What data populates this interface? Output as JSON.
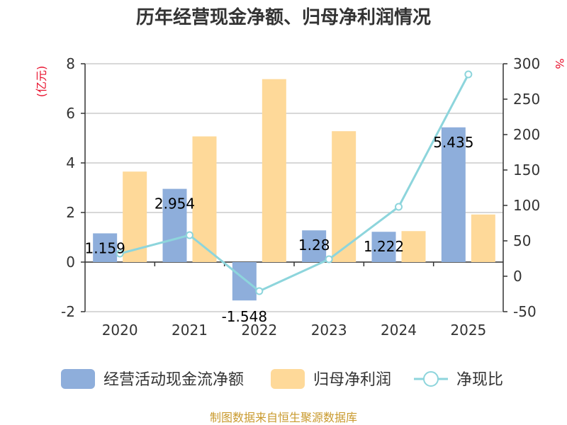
{
  "colors": {
    "cash_flow": "#8eaedb",
    "net_profit": "#fed999",
    "ratio_line": "#8dd5dc",
    "unit_label": "#e8112d",
    "source_text": "#c99a2e"
  },
  "chart_data": {
    "type": "bar",
    "title": "历年经营现金净额、归母净利润情况",
    "categories": [
      "2020",
      "2021",
      "2022",
      "2023",
      "2024",
      "2025"
    ],
    "series": [
      {
        "name": "经营活动现金流净额",
        "type": "bar",
        "axis": "left",
        "values": [
          1.159,
          2.954,
          -1.548,
          1.28,
          1.222,
          5.435
        ],
        "data_labels": [
          "1.159",
          "2.954",
          "-1.548",
          "1.28",
          "1.222",
          "5.435"
        ]
      },
      {
        "name": "归母净利润",
        "type": "bar",
        "axis": "left",
        "values": [
          3.65,
          5.07,
          7.38,
          5.28,
          1.25,
          1.92
        ]
      },
      {
        "name": "净现比",
        "type": "line",
        "axis": "right",
        "values": [
          32,
          58,
          -21,
          24,
          98,
          285
        ]
      }
    ],
    "y_left": {
      "unit": "(亿元)",
      "ylim": [
        -2,
        8
      ],
      "ticks": [
        "-2",
        "0",
        "2",
        "4",
        "6",
        "8"
      ]
    },
    "y_right": {
      "unit": "%",
      "ylim": [
        -50,
        300
      ],
      "ticks": [
        "-50",
        "0",
        "50",
        "100",
        "150",
        "200",
        "250",
        "300"
      ]
    },
    "grid": true,
    "legend_position": "bottom"
  },
  "source": "制图数据来自恒生聚源数据库"
}
